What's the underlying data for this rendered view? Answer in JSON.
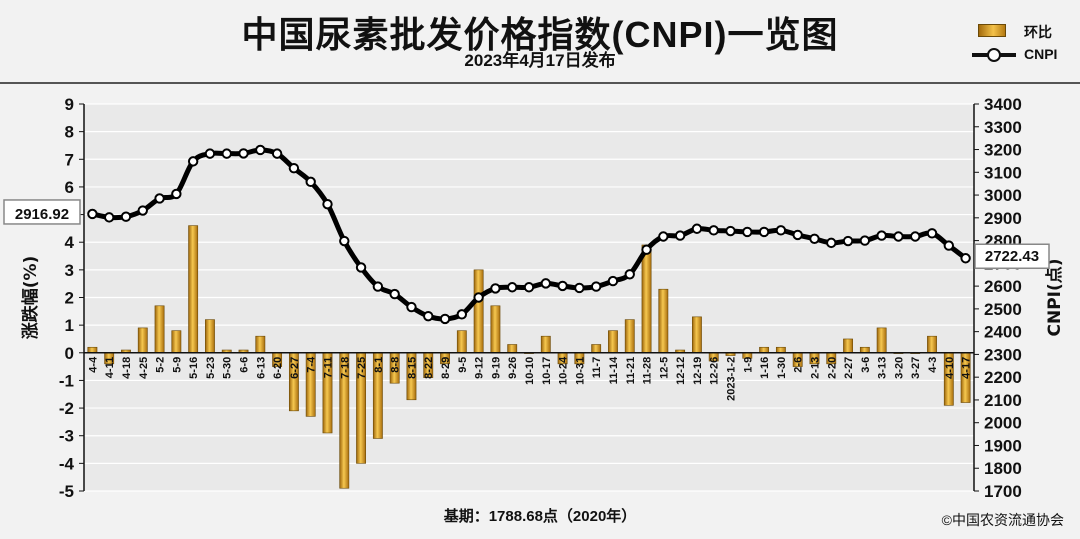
{
  "header": {
    "title": "中国尿素批发价格指数(CNPI)一览图",
    "subtitle": "2023年4月17日发布"
  },
  "legend": {
    "bar_label": "环比",
    "line_label": "CNPI"
  },
  "footer": {
    "baseline": "基期：1788.68点（2020年）",
    "copyright": "©中国农资流通协会"
  },
  "colors": {
    "bar": "#e0a62a",
    "line": "#000000",
    "background": "#e8e8e8",
    "grid": "#ffffff"
  },
  "chart_data": {
    "type": "bar+line",
    "categories": [
      "4-4",
      "4-11",
      "4-18",
      "4-25",
      "5-2",
      "5-9",
      "5-16",
      "5-23",
      "5-30",
      "6-6",
      "6-13",
      "6-20",
      "6-27",
      "7-4",
      "7-11",
      "7-18",
      "7-25",
      "8-1",
      "8-8",
      "8-15",
      "8-22",
      "8-29",
      "9-5",
      "9-12",
      "9-19",
      "9-26",
      "10-10",
      "10-17",
      "10-24",
      "10-31",
      "11-7",
      "11-14",
      "11-21",
      "11-28",
      "12-5",
      "12-12",
      "12-19",
      "12-26",
      "2023-1-2",
      "1-9",
      "1-16",
      "1-30",
      "2-6",
      "2-13",
      "2-20",
      "2-27",
      "3-6",
      "3-13",
      "3-20",
      "3-27",
      "4-3",
      "4-10",
      "4-17"
    ],
    "series": [
      {
        "name": "环比",
        "axis": "left",
        "unit": "%",
        "values": [
          0.2,
          -0.4,
          0.1,
          0.9,
          1.7,
          0.8,
          4.6,
          1.2,
          0.1,
          0.1,
          0.6,
          -0.5,
          -2.1,
          -2.3,
          -2.9,
          -4.9,
          -4.0,
          -3.1,
          -1.1,
          -1.7,
          -0.9,
          -0.4,
          0.8,
          3.0,
          1.7,
          0.3,
          0.0,
          0.6,
          -0.4,
          -0.4,
          0.3,
          0.8,
          1.2,
          3.9,
          2.3,
          0.1,
          1.3,
          -0.3,
          -0.1,
          -0.2,
          0.2,
          0.2,
          -0.5,
          -0.4,
          -0.4,
          0.5,
          0.2,
          0.9,
          0.0,
          0.0,
          0.6,
          -1.9,
          -1.8
        ]
      },
      {
        "name": "CNPI",
        "axis": "right",
        "unit": "点",
        "values": [
          2916.92,
          2902,
          2905,
          2932,
          2985,
          3005,
          3148,
          3182,
          3182,
          3183,
          3198,
          3182,
          3118,
          3058,
          2960,
          2798,
          2682,
          2598,
          2565,
          2508,
          2468,
          2456,
          2476,
          2550,
          2590,
          2595,
          2595,
          2612,
          2601,
          2592,
          2598,
          2622,
          2652,
          2760,
          2818,
          2822,
          2852,
          2845,
          2842,
          2838,
          2838,
          2845,
          2825,
          2808,
          2790,
          2798,
          2800,
          2822,
          2818,
          2818,
          2832,
          2778,
          2722.43
        ]
      }
    ],
    "y_left": {
      "label": "涨跌幅(%)",
      "min": -5,
      "max": 9,
      "ticks": [
        -5,
        -4,
        -3,
        -2,
        -1,
        0,
        1,
        2,
        3,
        4,
        5,
        6,
        7,
        8,
        9
      ]
    },
    "y_right": {
      "label": "CNPI(点)",
      "min": 1700,
      "max": 3400,
      "ticks": [
        1700,
        1800,
        1900,
        2000,
        2100,
        2200,
        2300,
        2400,
        2500,
        2600,
        2700,
        2800,
        2900,
        3000,
        3100,
        3200,
        3300,
        3400
      ]
    },
    "callouts": {
      "first": "2916.92",
      "last": "2722.43"
    },
    "grid": true,
    "legend_position": "top-right"
  }
}
